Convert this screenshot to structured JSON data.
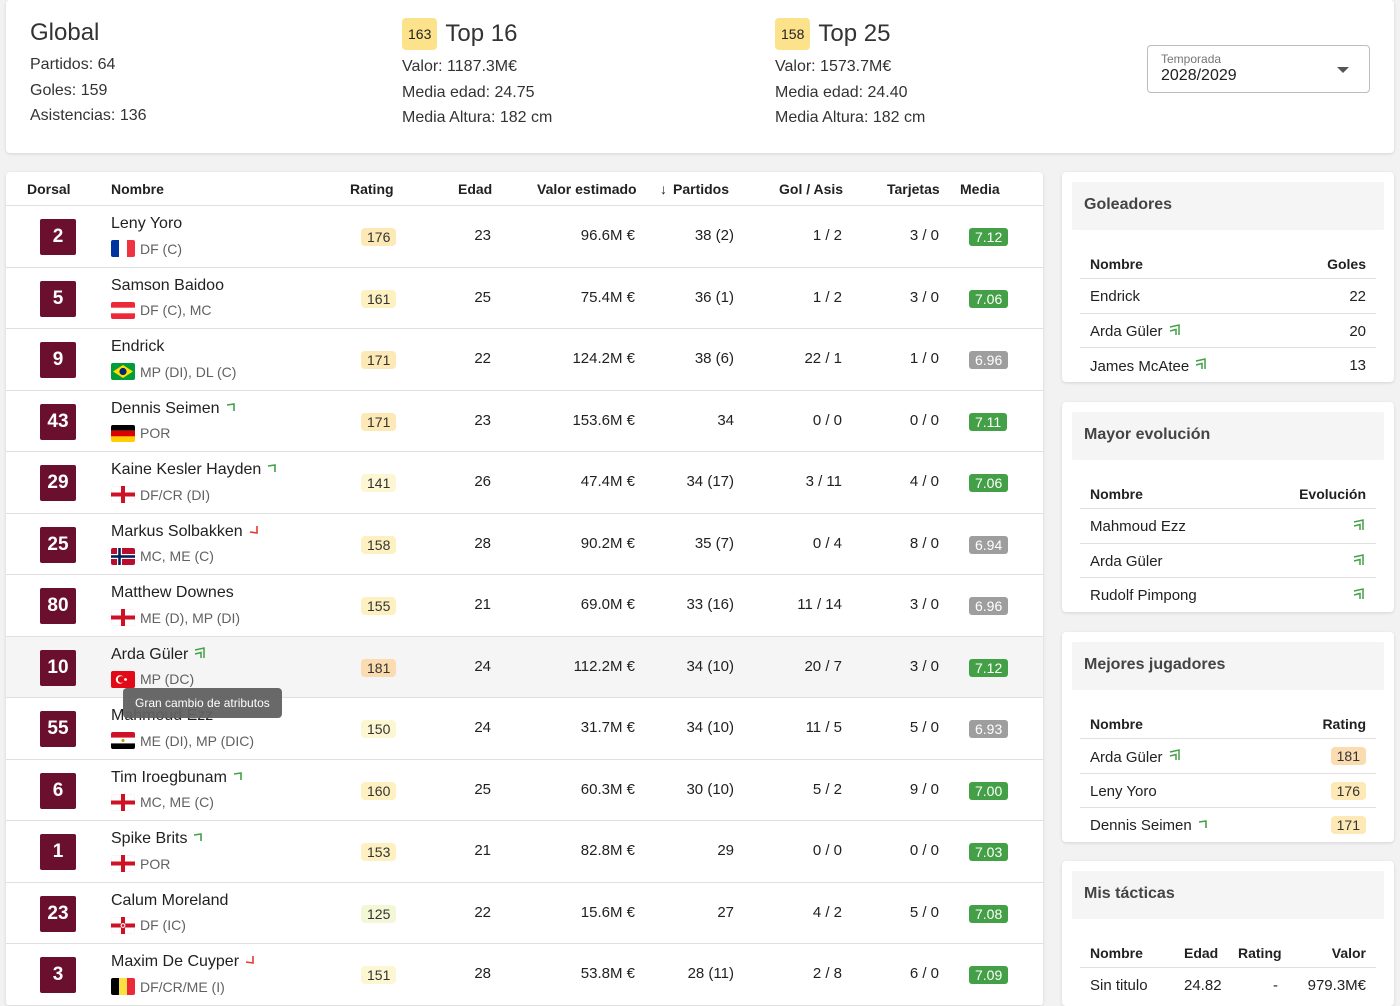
{
  "summary": {
    "global": {
      "title": "Global",
      "lines": [
        "Partidos: 64",
        "Goles: 159",
        "Asistencias: 136"
      ]
    },
    "top16": {
      "count": "163",
      "title": "Top 16",
      "lines": [
        "Valor: 1187.3M€",
        "Media edad: 24.75",
        "Media Altura: 182 cm"
      ]
    },
    "top25": {
      "count": "158",
      "title": "Top 25",
      "lines": [
        "Valor: 1573.7M€",
        "Media edad: 24.40",
        "Media Altura: 182 cm"
      ]
    }
  },
  "season_select": {
    "label": "Temporada",
    "value": "2028/2029",
    "icon": "chevron-down-icon"
  },
  "squad": {
    "headers": {
      "dorsal": "Dorsal",
      "nombre": "Nombre",
      "rating": "Rating",
      "edad": "Edad",
      "valor": "Valor estimado",
      "partidos": "Partidos",
      "sort_icon": "↓",
      "golasis": "Gol / Asis",
      "tarjetas": "Tarjetas",
      "media": "Media"
    },
    "tooltip": "Gran cambio de atributos",
    "rows": [
      {
        "dorsal": "2",
        "name": "Leny Yoro",
        "flag": "france",
        "pos": "DF (C)",
        "trend": "",
        "rating": "176",
        "edad": "23",
        "valor": "96.6M €",
        "partidos": "38 (2)",
        "golasis": "1 / 2",
        "tarjetas": "3 / 0",
        "media": "7.12",
        "media_color": "#43a047",
        "rating_color": "#fde9b5"
      },
      {
        "dorsal": "5",
        "name": "Samson Baidoo",
        "flag": "austria",
        "pos": "DF (C), MC",
        "trend": "",
        "rating": "161",
        "edad": "25",
        "valor": "75.4M €",
        "partidos": "36 (1)",
        "golasis": "1 / 2",
        "tarjetas": "3 / 0",
        "media": "7.06",
        "media_color": "#43a047",
        "rating_color": "#fdf1c2"
      },
      {
        "dorsal": "9",
        "name": "Endrick",
        "flag": "brazil",
        "pos": "MP (DI), DL (C)",
        "trend": "",
        "rating": "171",
        "edad": "22",
        "valor": "124.2M €",
        "partidos": "38 (6)",
        "golasis": "22 / 1",
        "tarjetas": "1 / 0",
        "media": "6.96",
        "media_color": "#9e9e9e",
        "rating_color": "#fde9b5"
      },
      {
        "dorsal": "43",
        "name": "Dennis Seimen",
        "flag": "germany",
        "pos": "POR",
        "trend": "up",
        "rating": "171",
        "edad": "23",
        "valor": "153.6M €",
        "partidos": "34",
        "golasis": "0 / 0",
        "tarjetas": "0 / 0",
        "media": "7.11",
        "media_color": "#43a047",
        "rating_color": "#fde9b5"
      },
      {
        "dorsal": "29",
        "name": "Kaine Kesler Hayden",
        "flag": "england",
        "pos": "DF/CR (DI)",
        "trend": "up",
        "rating": "141",
        "edad": "26",
        "valor": "47.4M €",
        "partidos": "34 (17)",
        "golasis": "3 / 11",
        "tarjetas": "4 / 0",
        "media": "7.06",
        "media_color": "#43a047",
        "rating_color": "#fdf6d2"
      },
      {
        "dorsal": "25",
        "name": "Markus Solbakken",
        "flag": "norway",
        "pos": "MC, ME (C)",
        "trend": "down",
        "rating": "158",
        "edad": "28",
        "valor": "90.2M €",
        "partidos": "35 (7)",
        "golasis": "0 / 4",
        "tarjetas": "8 / 0",
        "media": "6.94",
        "media_color": "#9e9e9e",
        "rating_color": "#fdf1c2"
      },
      {
        "dorsal": "80",
        "name": "Matthew Downes",
        "flag": "england",
        "pos": "ME (D), MP (DI)",
        "trend": "",
        "rating": "155",
        "edad": "21",
        "valor": "69.0M €",
        "partidos": "33 (16)",
        "golasis": "11 / 14",
        "tarjetas": "3 / 0",
        "media": "6.96",
        "media_color": "#9e9e9e",
        "rating_color": "#fdf1c2"
      },
      {
        "dorsal": "10",
        "name": "Arda Güler",
        "flag": "turkey",
        "pos": "MP (DC)",
        "trend": "bigup",
        "rating": "181",
        "edad": "24",
        "valor": "112.2M €",
        "partidos": "34 (10)",
        "golasis": "20 / 7",
        "tarjetas": "3 / 0",
        "media": "7.12",
        "media_color": "#43a047",
        "rating_color": "#fbdcb0"
      },
      {
        "dorsal": "55",
        "name": "Mahmoud Ezz",
        "flag": "egypt",
        "pos": "ME (DI), MP (DIC)",
        "trend": "",
        "rating": "150",
        "edad": "24",
        "valor": "31.7M €",
        "partidos": "34 (10)",
        "golasis": "11 / 5",
        "tarjetas": "5 / 0",
        "media": "6.93",
        "media_color": "#9e9e9e",
        "rating_color": "#fdf6d2"
      },
      {
        "dorsal": "6",
        "name": "Tim Iroegbunam",
        "flag": "england",
        "pos": "MC, ME (C)",
        "trend": "up",
        "rating": "160",
        "edad": "25",
        "valor": "60.3M €",
        "partidos": "30 (10)",
        "golasis": "5 / 2",
        "tarjetas": "9 / 0",
        "media": "7.00",
        "media_color": "#43a047",
        "rating_color": "#fdf1c2"
      },
      {
        "dorsal": "1",
        "name": "Spike Brits",
        "flag": "england",
        "pos": "POR",
        "trend": "up",
        "rating": "153",
        "edad": "21",
        "valor": "82.8M €",
        "partidos": "29",
        "golasis": "0 / 0",
        "tarjetas": "0 / 0",
        "media": "7.03",
        "media_color": "#43a047",
        "rating_color": "#fdf1c2"
      },
      {
        "dorsal": "23",
        "name": "Calum Moreland",
        "flag": "northernireland",
        "pos": "DF (IC)",
        "trend": "",
        "rating": "125",
        "edad": "22",
        "valor": "15.6M €",
        "partidos": "27",
        "golasis": "4 / 2",
        "tarjetas": "5 / 0",
        "media": "7.08",
        "media_color": "#43a047",
        "rating_color": "#f3f7d6"
      },
      {
        "dorsal": "3",
        "name": "Maxim De Cuyper",
        "flag": "belgium",
        "pos": "DF/CR/ME (I)",
        "trend": "down",
        "rating": "151",
        "edad": "28",
        "valor": "53.8M €",
        "partidos": "28 (11)",
        "golasis": "2 / 8",
        "tarjetas": "6 / 0",
        "media": "7.09",
        "media_color": "#43a047",
        "rating_color": "#fdf6d2"
      }
    ]
  },
  "goleadores": {
    "title": "Goleadores",
    "col1": "Nombre",
    "col2": "Goles",
    "rows": [
      {
        "name": "Endrick",
        "value": "22",
        "trend": ""
      },
      {
        "name": "Arda Güler",
        "value": "20",
        "trend": "bigup"
      },
      {
        "name": "James McAtee",
        "value": "13",
        "trend": "bigup"
      }
    ]
  },
  "evolucion": {
    "title": "Mayor evolución",
    "col1": "Nombre",
    "col2": "Evolución",
    "rows": [
      {
        "name": "Mahmoud Ezz",
        "trend": "bigup"
      },
      {
        "name": "Arda Güler",
        "trend": "bigup"
      },
      {
        "name": "Rudolf Pimpong",
        "trend": "bigup"
      }
    ]
  },
  "mejores": {
    "title": "Mejores jugadores",
    "col1": "Nombre",
    "col2": "Rating",
    "rows": [
      {
        "name": "Arda Güler",
        "value": "181",
        "trend": "bigup",
        "color": "#fbdcb0"
      },
      {
        "name": "Leny Yoro",
        "value": "176",
        "trend": "",
        "color": "#fde9b5"
      },
      {
        "name": "Dennis Seimen",
        "value": "171",
        "trend": "up",
        "color": "#fde9b5"
      }
    ]
  },
  "tacticas": {
    "title": "Mis tácticas",
    "cols": [
      "Nombre",
      "Edad",
      "Rating",
      "Valor"
    ],
    "rows": [
      {
        "name": "Sin titulo",
        "edad": "24.82",
        "rating": "-",
        "valor": "979.3M€"
      }
    ]
  },
  "colors": {
    "badge": "#6b0f2e",
    "trend_up": "#43a047",
    "trend_down": "#e53935"
  }
}
